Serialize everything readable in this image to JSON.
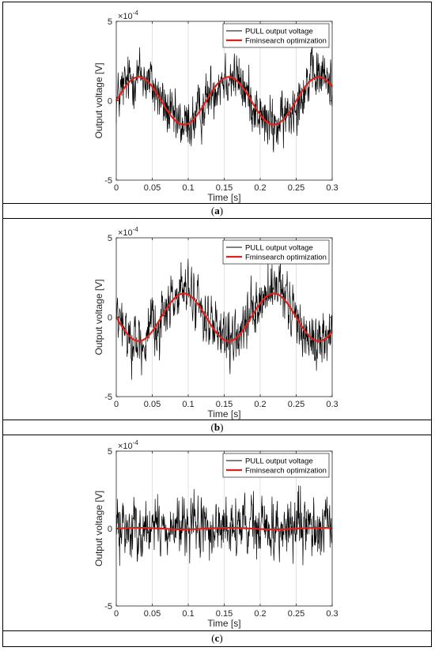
{
  "chart_data": [
    {
      "type": "line",
      "panel": "a",
      "caption": "a",
      "xlabel": "Time [s]",
      "ylabel": "Output voltage [V]",
      "exponent_label": "×10",
      "exponent_power": "-4",
      "xlim": [
        0,
        0.3
      ],
      "ylim": [
        -5,
        5
      ],
      "xticks": [
        "0",
        "0.05",
        "0.1",
        "0.15",
        "0.2",
        "0.25",
        "0.3"
      ],
      "yticks": [
        "-5",
        "0",
        "5"
      ],
      "grid": "vertical",
      "legend_placement": "top-right",
      "series": [
        {
          "name": "PULL output voltage",
          "color": "#000000",
          "kind": "noisy_sine",
          "amplitude": 1.6,
          "frequency_hz": 8,
          "phase": 0,
          "noise_amplitude": 1.8
        },
        {
          "name": "Fminsearch optimization",
          "color": "#e0201b",
          "kind": "sine",
          "amplitude": 1.5,
          "frequency_hz": 8,
          "phase": 0
        }
      ]
    },
    {
      "type": "line",
      "panel": "b",
      "caption": "b",
      "xlabel": "Time [s]",
      "ylabel": "Output voltage [V]",
      "exponent_label": "×10",
      "exponent_power": "-4",
      "xlim": [
        0,
        0.3
      ],
      "ylim": [
        -5,
        5
      ],
      "xticks": [
        "0",
        "0.05",
        "0.1",
        "0.15",
        "0.2",
        "0.25",
        "0.3"
      ],
      "yticks": [
        "-5",
        "0",
        "5"
      ],
      "grid": "vertical",
      "legend_placement": "top-right",
      "series": [
        {
          "name": "PULL output voltage",
          "color": "#000000",
          "kind": "noisy_sine",
          "amplitude": -1.6,
          "frequency_hz": 8,
          "phase": 0,
          "noise_amplitude": 1.8
        },
        {
          "name": "Fminsearch optimization",
          "color": "#e0201b",
          "kind": "sine",
          "amplitude": -1.5,
          "frequency_hz": 8,
          "phase": 0
        }
      ]
    },
    {
      "type": "line",
      "panel": "c",
      "caption": "c",
      "xlabel": "Time [s]",
      "ylabel": "Output voltage [V]",
      "exponent_label": "×10",
      "exponent_power": "-4",
      "xlim": [
        0,
        0.3
      ],
      "ylim": [
        -5,
        5
      ],
      "xticks": [
        "0",
        "0.05",
        "0.1",
        "0.15",
        "0.2",
        "0.25",
        "0.3"
      ],
      "yticks": [
        "-5",
        "0",
        "5"
      ],
      "grid": "vertical",
      "legend_placement": "top-right",
      "series": [
        {
          "name": "PULL output voltage",
          "color": "#000000",
          "kind": "noisy_sine",
          "amplitude": 0,
          "frequency_hz": 8,
          "phase": 0,
          "noise_amplitude": 2.0
        },
        {
          "name": "Fminsearch optimization",
          "color": "#e0201b",
          "kind": "sine",
          "amplitude": 0.05,
          "frequency_hz": 8,
          "phase": 0
        }
      ]
    }
  ]
}
